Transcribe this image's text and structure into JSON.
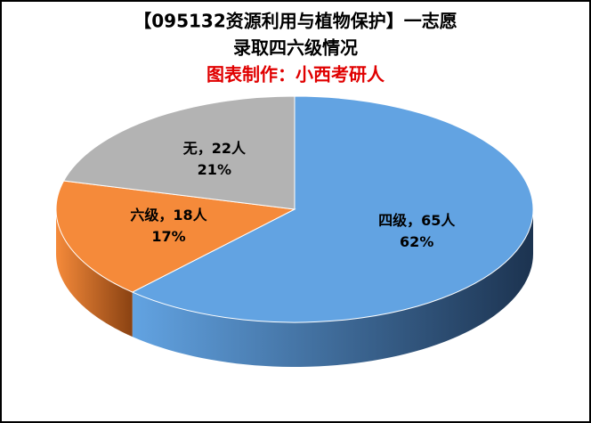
{
  "chart_data": {
    "type": "pie3d",
    "title": [
      "【095132资源利用与植物保护】一志愿",
      "录取四六级情况"
    ],
    "subtitle": "图表制作：小西考研人",
    "values": [
      65,
      18,
      22
    ],
    "value_labels": [
      "四级，65人",
      "六级，18人",
      "无，22人"
    ],
    "percents": [
      62,
      17,
      21
    ],
    "percent_labels": [
      "62%",
      "17%",
      "21%"
    ],
    "colors": [
      "#62a3e2",
      "#f58a3a",
      "#b3b3b3"
    ],
    "side_colors": [
      "#1c3350",
      "#8a4212",
      "#6b6b6b"
    ]
  }
}
